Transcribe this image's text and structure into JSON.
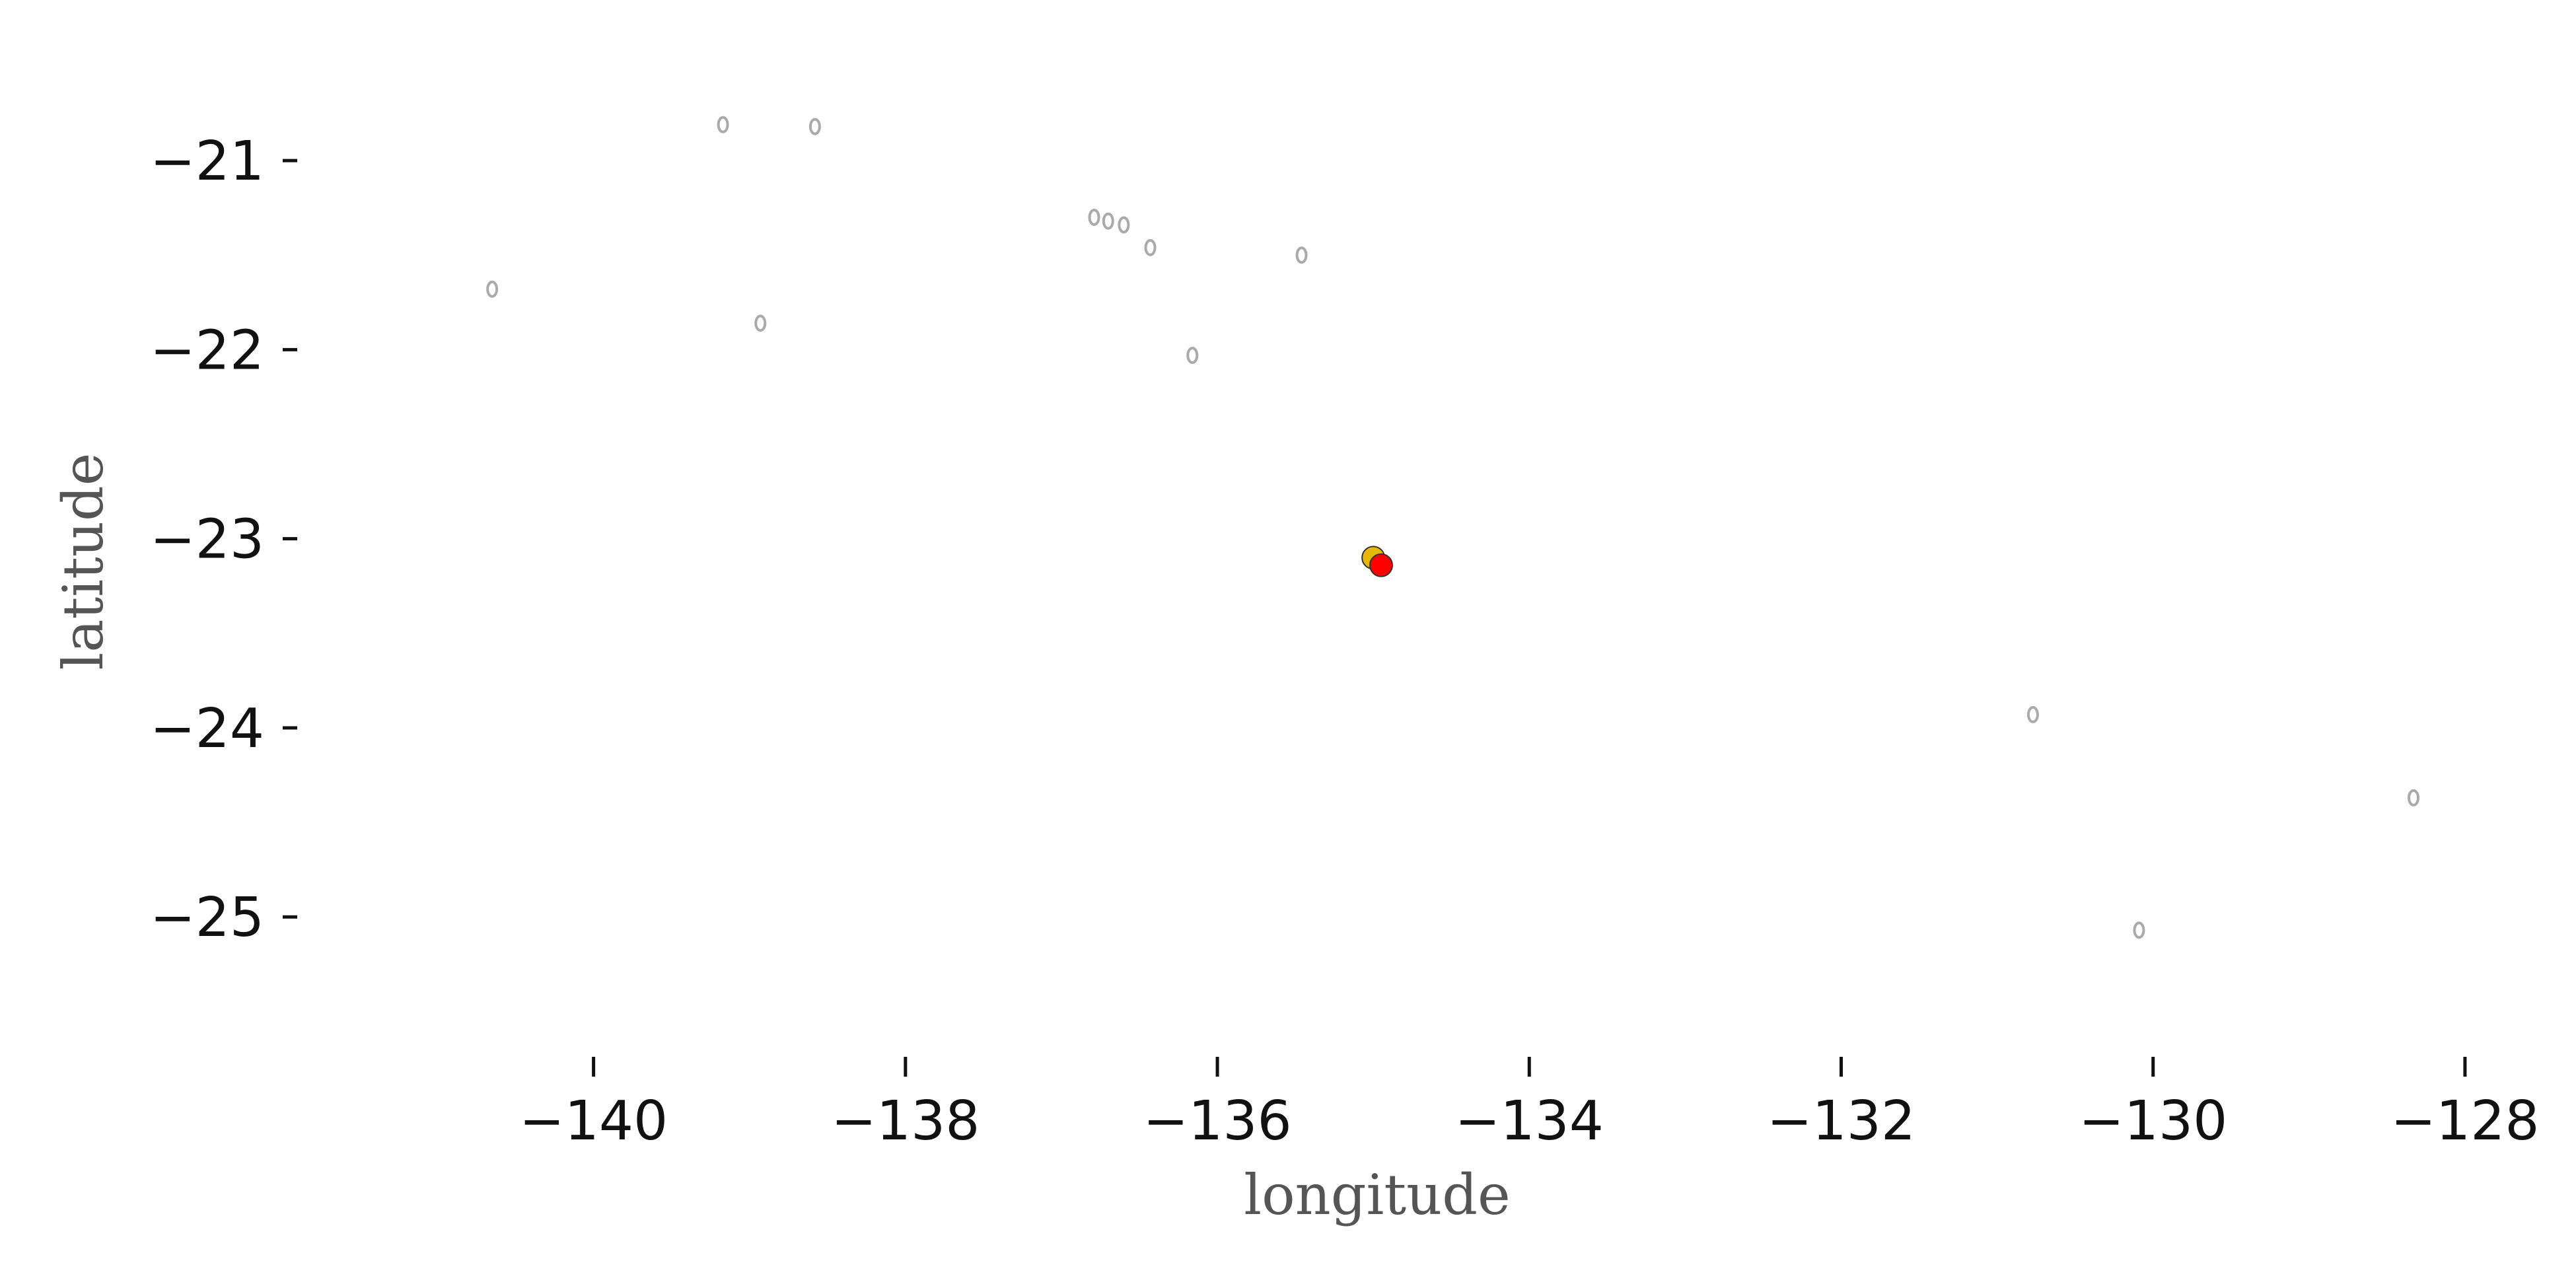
{
  "chart_data": {
    "type": "scatter",
    "title": "",
    "xlabel": "longitude",
    "ylabel": "latitude",
    "xlim": [
      -141.9,
      -127.5
    ],
    "ylim": [
      -25.6,
      -20.5
    ],
    "xticks": [
      -140,
      -138,
      -136,
      -134,
      -132,
      -130,
      -128
    ],
    "yticks": [
      -21,
      -22,
      -23,
      -24,
      -25
    ],
    "xtick_labels": [
      "−140",
      "−138",
      "−136",
      "−134",
      "−132",
      "−130",
      "−128"
    ],
    "ytick_labels": [
      "−21",
      "−22",
      "−23",
      "−24",
      "−25"
    ],
    "grid": false,
    "frame": false,
    "series": [
      {
        "color": "#e6b800",
        "points": [
          {
            "x": -135.0,
            "y": -23.1
          }
        ]
      },
      {
        "color": "#ff0000",
        "points": [
          {
            "x": -134.95,
            "y": -23.14
          }
        ]
      }
    ],
    "coastlines": {
      "color": "#aaaaaa",
      "islands": [
        {
          "x": -140.65,
          "y": -21.68
        },
        {
          "x": -139.17,
          "y": -20.81
        },
        {
          "x": -138.58,
          "y": -20.82
        },
        {
          "x": -138.93,
          "y": -21.86
        },
        {
          "x": -136.79,
          "y": -21.3
        },
        {
          "x": -136.7,
          "y": -21.32
        },
        {
          "x": -136.6,
          "y": -21.34
        },
        {
          "x": -136.43,
          "y": -21.46
        },
        {
          "x": -135.46,
          "y": -21.5
        },
        {
          "x": -136.16,
          "y": -22.03
        },
        {
          "x": -130.77,
          "y": -23.93
        },
        {
          "x": -130.09,
          "y": -25.07
        },
        {
          "x": -128.33,
          "y": -24.37
        }
      ]
    }
  }
}
